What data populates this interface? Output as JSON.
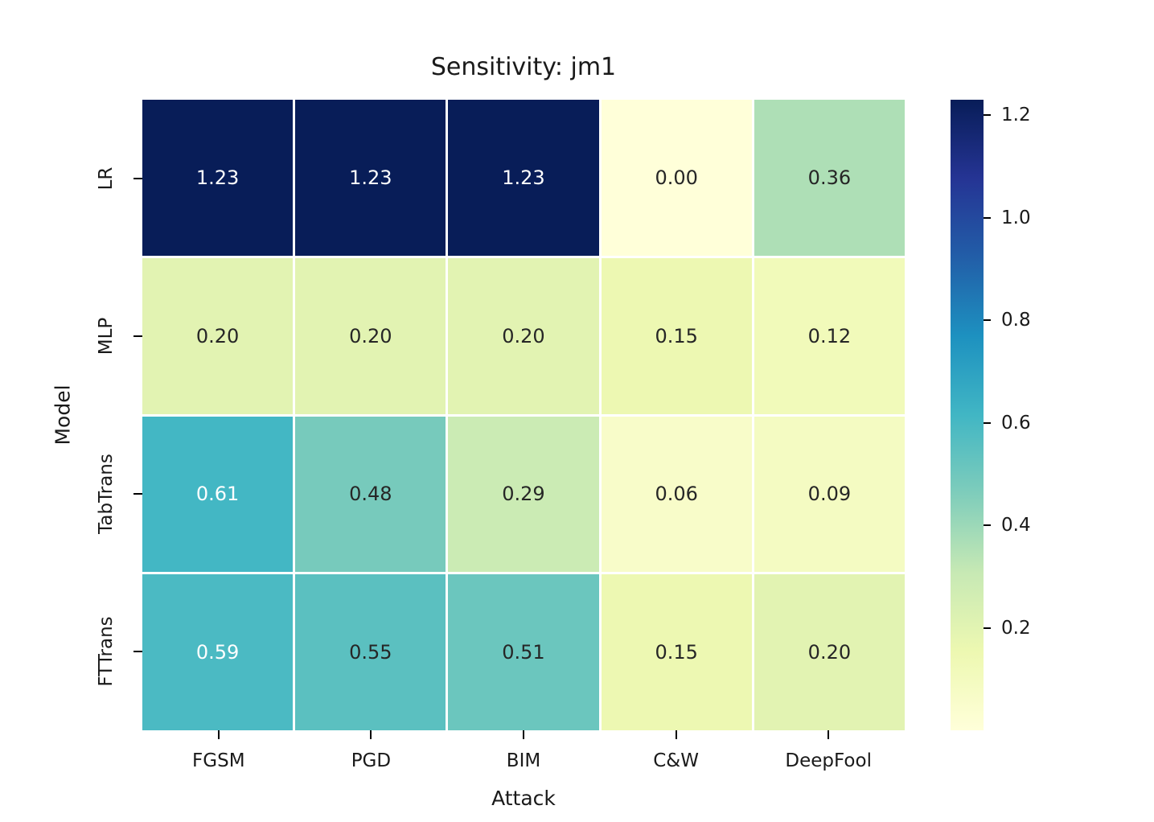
{
  "figure": {
    "background": "#ffffff",
    "text_color": "#1a1a1a"
  },
  "chart_data": {
    "type": "heatmap",
    "title": "Sensitivity: jm1",
    "xlabel": "Attack",
    "ylabel": "Model",
    "x_categories": [
      "FGSM",
      "PGD",
      "BIM",
      "C&W",
      "DeepFool"
    ],
    "y_categories": [
      "LR",
      "MLP",
      "TabTrans",
      "FTTrans"
    ],
    "values": [
      [
        1.23,
        1.23,
        1.23,
        0.0,
        0.36
      ],
      [
        0.2,
        0.2,
        0.2,
        0.15,
        0.12
      ],
      [
        0.61,
        0.48,
        0.29,
        0.06,
        0.09
      ],
      [
        0.59,
        0.55,
        0.51,
        0.15,
        0.2
      ]
    ],
    "value_format_decimals": 2,
    "vmin": 0.0,
    "vmax": 1.23,
    "colormap": "YlGnBu",
    "colormap_stops": [
      {
        "pos": 0.0,
        "color": "#ffffd9"
      },
      {
        "pos": 0.125,
        "color": "#edf8b1"
      },
      {
        "pos": 0.25,
        "color": "#c7e9b4"
      },
      {
        "pos": 0.375,
        "color": "#7fcdbb"
      },
      {
        "pos": 0.5,
        "color": "#41b6c4"
      },
      {
        "pos": 0.625,
        "color": "#1d91c0"
      },
      {
        "pos": 0.75,
        "color": "#225ea8"
      },
      {
        "pos": 0.875,
        "color": "#253494"
      },
      {
        "pos": 1.0,
        "color": "#081d58"
      }
    ],
    "grid_line_color": "#ffffff",
    "annotation_color_dark": "#262626",
    "annotation_color_light": "#ffffff",
    "colorbar_ticks": [
      1.2,
      1.0,
      0.8,
      0.6,
      0.4,
      0.2
    ],
    "colorbar_position": "right",
    "grid": "off"
  }
}
